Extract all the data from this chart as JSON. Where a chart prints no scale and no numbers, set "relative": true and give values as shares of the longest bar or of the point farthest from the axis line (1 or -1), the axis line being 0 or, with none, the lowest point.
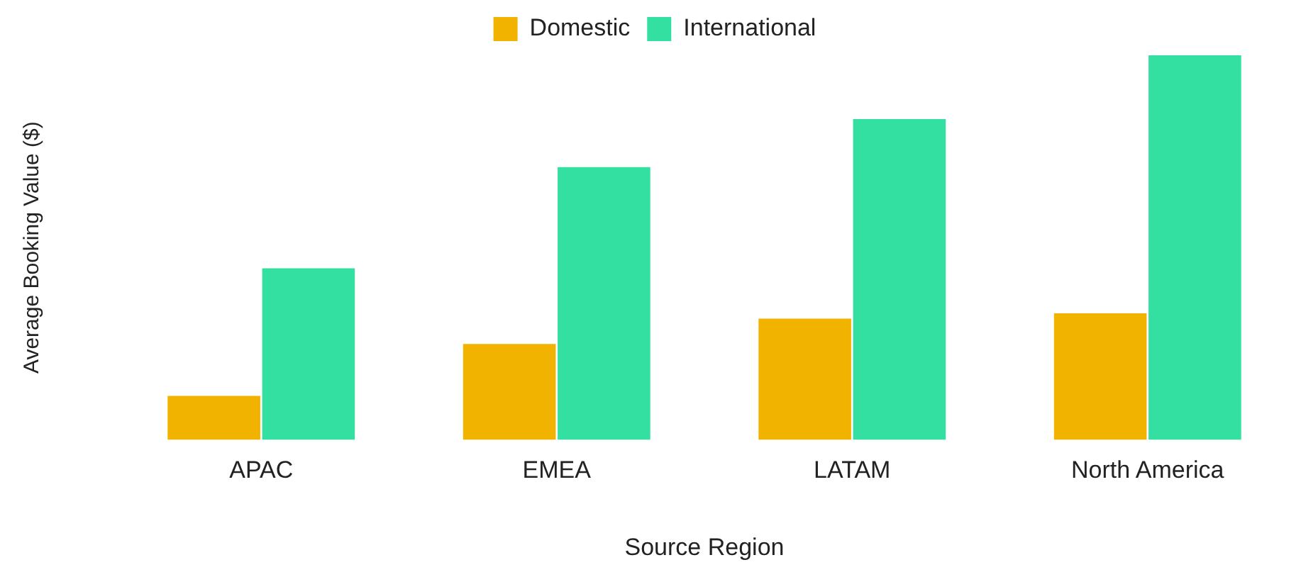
{
  "chart_data": {
    "type": "bar",
    "relative": true,
    "xlabel": "Source Region",
    "ylabel": "Average Booking Value ($)",
    "categories": [
      "APAC",
      "EMEA",
      "LATAM",
      "North America"
    ],
    "series": [
      {
        "name": "Domestic",
        "color": "#f2b300",
        "values": [
          0.114,
          0.249,
          0.315,
          0.329
        ]
      },
      {
        "name": "International",
        "color": "#34e0a1",
        "values": [
          0.446,
          0.709,
          0.834,
          1
        ]
      }
    ],
    "legend": "top",
    "grid": false
  }
}
